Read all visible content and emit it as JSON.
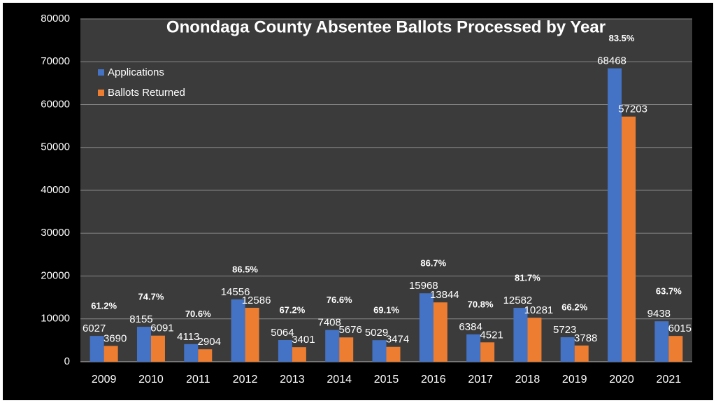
{
  "chart_data": {
    "type": "bar",
    "title": "Onondaga County Absentee Ballots Processed by Year",
    "categories": [
      "2009",
      "2010",
      "2011",
      "2012",
      "2013",
      "2014",
      "2015",
      "2016",
      "2017",
      "2018",
      "2019",
      "2020",
      "2021"
    ],
    "series": [
      {
        "name": "Applications",
        "color": "#4472c4",
        "values": [
          6027,
          8155,
          4113,
          14556,
          5064,
          7408,
          5029,
          15968,
          6384,
          12582,
          5723,
          68468,
          9438
        ]
      },
      {
        "name": "Ballots Returned",
        "color": "#ed7d31",
        "values": [
          3690,
          6091,
          2904,
          12586,
          3401,
          5676,
          3474,
          13844,
          4521,
          10281,
          3788,
          57203,
          6015
        ]
      }
    ],
    "annotations": [
      "61.2%",
      "74.7%",
      "70.6%",
      "86.5%",
      "67.2%",
      "76.6%",
      "69.1%",
      "86.7%",
      "70.8%",
      "81.7%",
      "66.2%",
      "83.5%",
      "63.7%"
    ],
    "ylim": [
      0,
      80000
    ],
    "yticks": [
      0,
      10000,
      20000,
      30000,
      40000,
      50000,
      60000,
      70000,
      80000
    ],
    "grid": true,
    "legend": "top-left"
  }
}
